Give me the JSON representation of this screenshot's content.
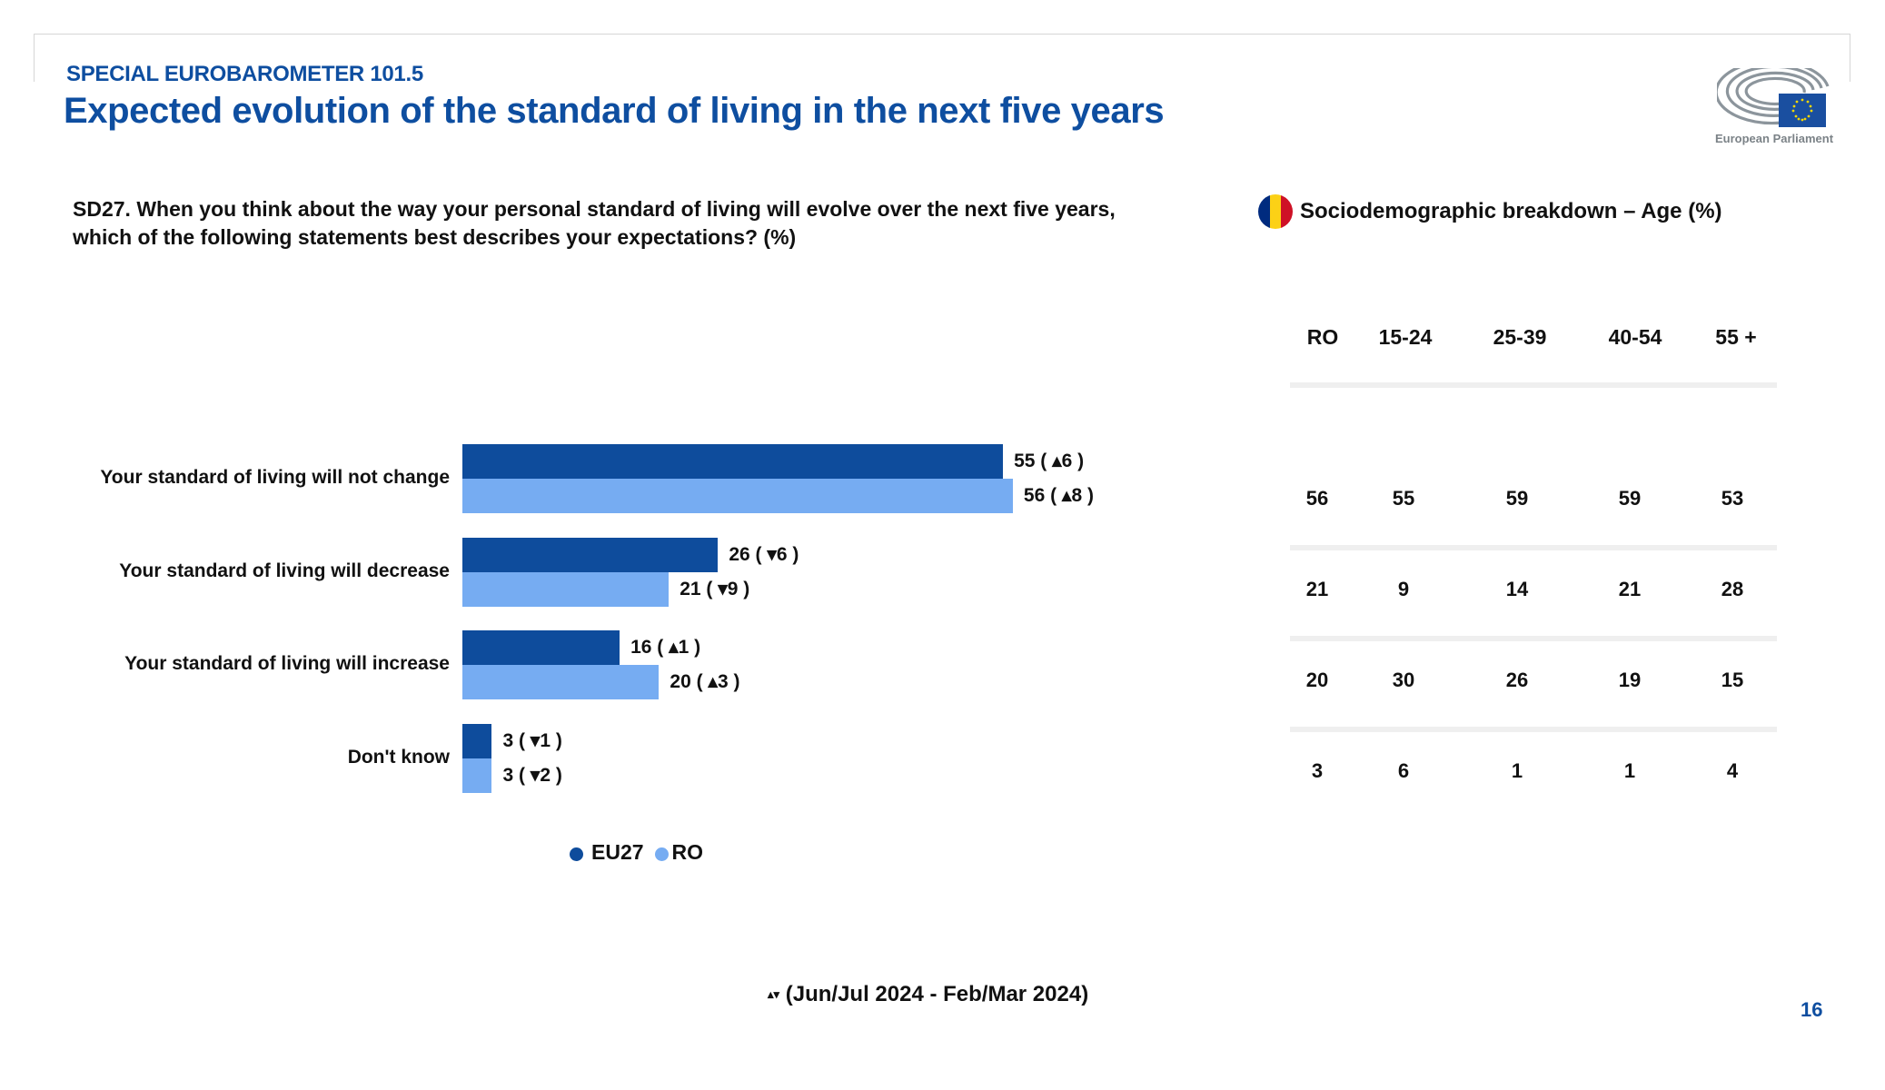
{
  "header": {
    "kicker": "SPECIAL EUROBAROMETER 101.5",
    "title": "Expected evolution of the standard of living in the next five years",
    "logo_text": "European Parliament"
  },
  "question": "SD27. When you think about the way your personal standard of living will evolve over the next five years, which of the following statements best describes your expectations? (%)",
  "breakdown": {
    "title": "Sociodemographic breakdown – Age (%)",
    "flag_colors": [
      "#002b7f",
      "#fcd116",
      "#ce1126"
    ],
    "columns": [
      "RO",
      "15-24",
      "25-39",
      "40-54",
      "55 +"
    ],
    "rows": [
      [
        "56",
        "55",
        "59",
        "59",
        "53"
      ],
      [
        "21",
        "9",
        "14",
        "21",
        "28"
      ],
      [
        "20",
        "30",
        "26",
        "19",
        "15"
      ],
      [
        "3",
        "6",
        "1",
        "1",
        "4"
      ]
    ]
  },
  "chart_data": {
    "type": "bar",
    "orientation": "horizontal",
    "title": "Expected evolution of the standard of living in the next five years",
    "categories": [
      "Your standard of living will not change",
      "Your standard of living will decrease",
      "Your standard of living will increase",
      "Don't know"
    ],
    "series": [
      {
        "name": "EU27",
        "color": "#0e4c9c",
        "values": [
          55,
          26,
          16,
          3
        ],
        "changes": [
          6,
          -6,
          1,
          -1
        ],
        "labels": [
          "55 ( ▴6 )",
          "26 ( ▾6 )",
          "16 ( ▴1 )",
          "3 ( ▾1 )"
        ]
      },
      {
        "name": "RO",
        "color": "#76acf2",
        "values": [
          56,
          21,
          20,
          3
        ],
        "changes": [
          8,
          -9,
          3,
          -2
        ],
        "labels": [
          "56 ( ▴8 )",
          "21 ( ▾9 )",
          "20 ( ▴3 )",
          "3 ( ▾2 )"
        ]
      }
    ],
    "xlabel": "",
    "ylabel": "",
    "xlim": [
      0,
      100
    ],
    "grid": false,
    "legend": "bottom",
    "legend_entries": [
      "EU27",
      "RO"
    ]
  },
  "footnote": {
    "symbols": "▴▾",
    "text": "(Jun/Jul 2024 - Feb/Mar 2024)"
  },
  "page_number": "16"
}
